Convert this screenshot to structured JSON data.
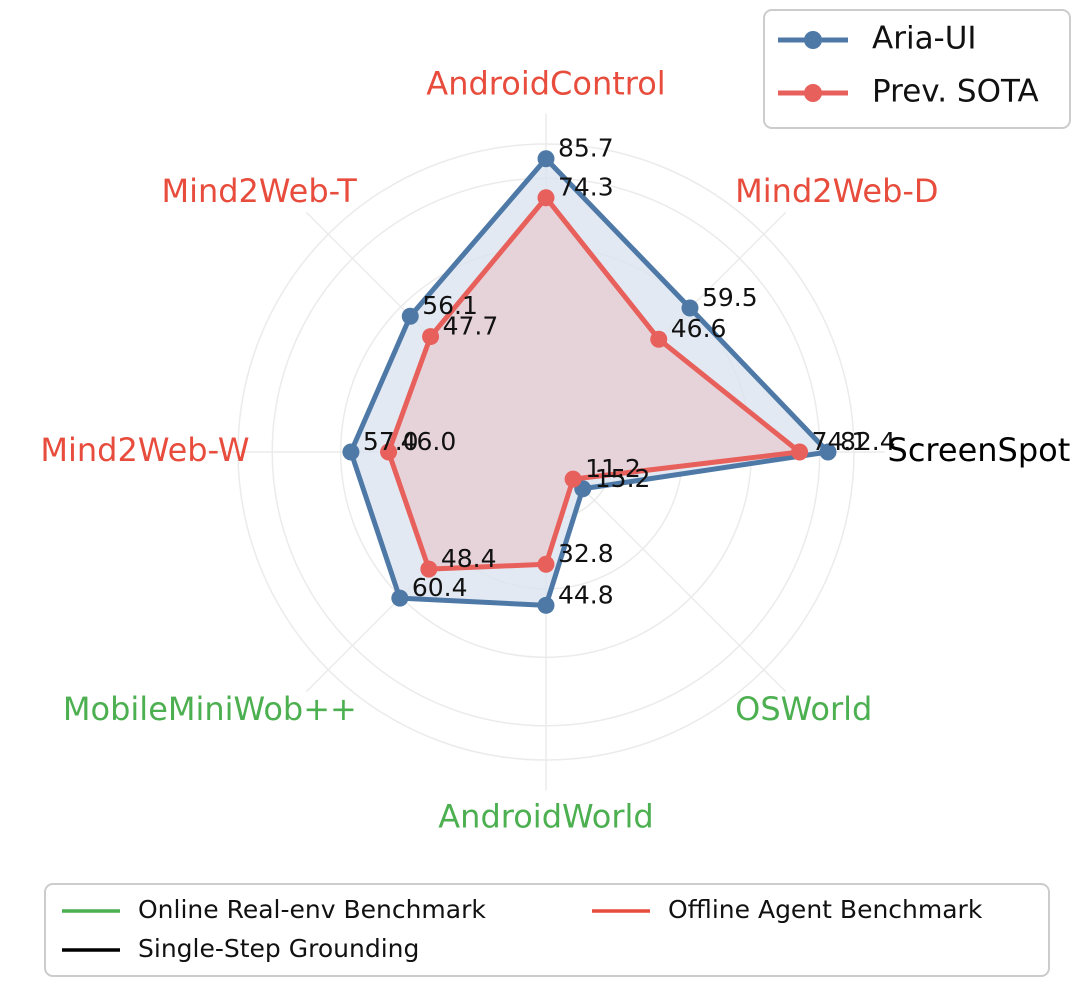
{
  "chart_data": {
    "type": "radar",
    "axes": [
      {
        "name": "ScreenSpot",
        "category": "single"
      },
      {
        "name": "Mind2Web-D",
        "category": "offline"
      },
      {
        "name": "AndroidControl",
        "category": "offline"
      },
      {
        "name": "Mind2Web-T",
        "category": "offline"
      },
      {
        "name": "Mind2Web-W",
        "category": "offline"
      },
      {
        "name": "MobileMiniWob++",
        "category": "online"
      },
      {
        "name": "AndroidWorld",
        "category": "online"
      },
      {
        "name": "OSWorld",
        "category": "online"
      }
    ],
    "series": [
      {
        "name": "Aria-UI",
        "color": "#4e79a7",
        "fill": "#dbe3ef",
        "values": {
          "ScreenSpot": 82.4,
          "Mind2Web-D": 59.5,
          "AndroidControl": 85.7,
          "Mind2Web-T": 56.1,
          "Mind2Web-W": 57.0,
          "MobileMiniWob++": 60.4,
          "AndroidWorld": 44.8,
          "OSWorld": 15.2
        },
        "labels": {
          "ScreenSpot": "82.4",
          "Mind2Web-D": "59.5",
          "AndroidControl": "85.7",
          "Mind2Web-T": "56.1",
          "Mind2Web-W": "57.0",
          "MobileMiniWob++": "60.4",
          "AndroidWorld": "44.8",
          "OSWorld": "15.2"
        }
      },
      {
        "name": "Prev. SOTA",
        "color": "#e8605c",
        "fill": "#e7cdd3",
        "values": {
          "ScreenSpot": 74.1,
          "Mind2Web-D": 46.6,
          "AndroidControl": 74.3,
          "Mind2Web-T": 47.7,
          "Mind2Web-W": 46.0,
          "MobileMiniWob++": 48.4,
          "AndroidWorld": 32.8,
          "OSWorld": 11.2
        },
        "labels": {
          "ScreenSpot": "74.1",
          "Mind2Web-D": "46.6",
          "AndroidControl": "74.3",
          "Mind2Web-T": "47.7",
          "Mind2Web-W": "46.0",
          "MobileMiniWob++": "48.4",
          "AndroidWorld": "32.8",
          "OSWorld": "11.2"
        }
      }
    ],
    "category_colors": {
      "online": "#4caf50",
      "offline": "#e74c3c",
      "single": "#000000"
    },
    "legend_top": {
      "placement": "top-right",
      "entries": [
        "Aria-UI",
        "Prev. SOTA"
      ]
    },
    "legend_bottom": {
      "placement": "bottom",
      "entries": [
        {
          "label": "Online Real-env Benchmark",
          "category": "online"
        },
        {
          "label": "Offline Agent Benchmark",
          "category": "offline"
        },
        {
          "label": "Single-Step Grounding",
          "category": "single"
        }
      ]
    },
    "grid": true
  }
}
